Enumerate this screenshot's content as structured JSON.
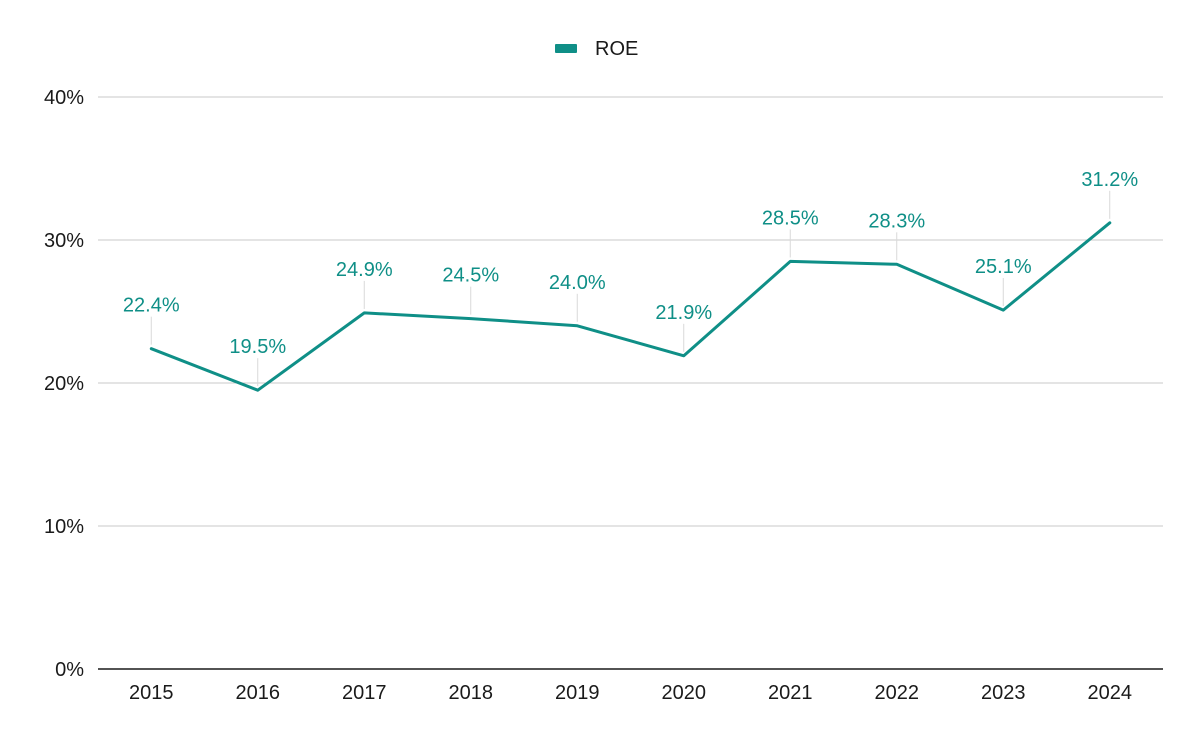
{
  "chart_data": {
    "type": "line",
    "categories": [
      "2015",
      "2016",
      "2017",
      "2018",
      "2019",
      "2020",
      "2021",
      "2022",
      "2023",
      "2024"
    ],
    "series": [
      {
        "name": "ROE",
        "values": [
          22.4,
          19.5,
          24.9,
          24.5,
          24.0,
          21.9,
          28.5,
          28.3,
          25.1,
          31.2
        ],
        "labels": [
          "22.4%",
          "19.5%",
          "24.9%",
          "24.5%",
          "24.0%",
          "21.9%",
          "28.5%",
          "28.3%",
          "25.1%",
          "31.2%"
        ]
      }
    ],
    "y_ticks": [
      0,
      10,
      20,
      30,
      40
    ],
    "y_tick_labels": [
      "0%",
      "10%",
      "20%",
      "30%",
      "40%"
    ],
    "ylim": [
      0,
      40
    ],
    "grid": true,
    "legend_position": "top-center",
    "colors": {
      "series": "#0f8f87",
      "grid": "#c8c8c8",
      "axis": "#1a1a1a",
      "leader": "#d9d9d9"
    }
  }
}
